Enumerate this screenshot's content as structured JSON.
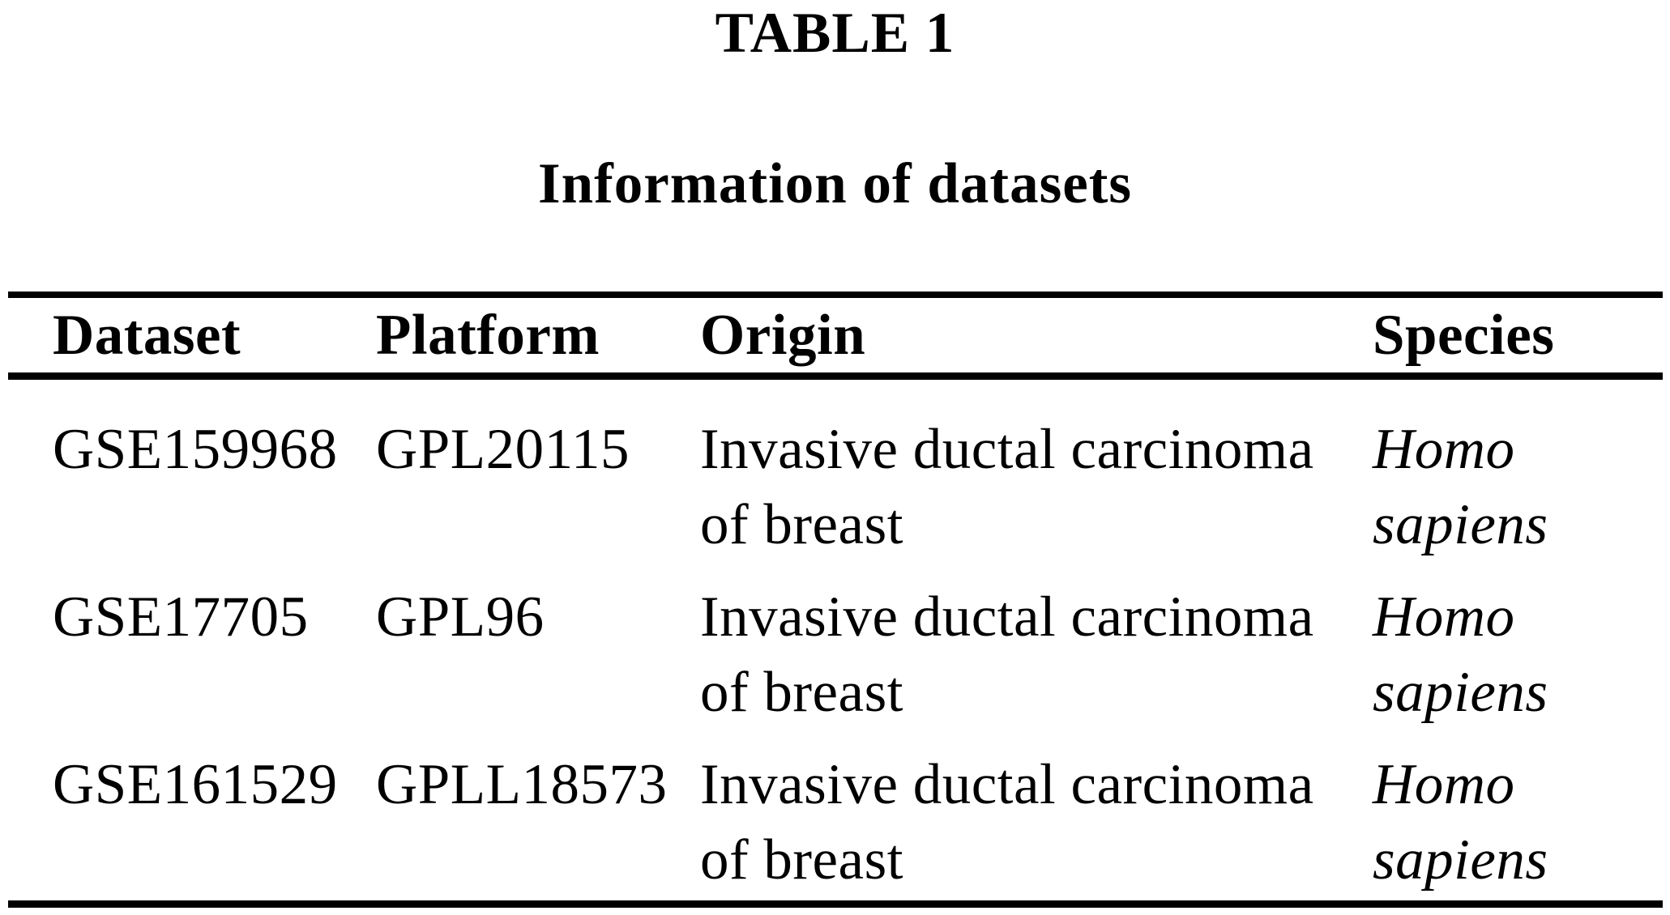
{
  "title": "TABLE 1",
  "subtitle": "Information of datasets",
  "table": {
    "headers": [
      "Dataset",
      "Platform",
      "Origin",
      "Species"
    ],
    "rows": [
      {
        "dataset": "GSE159968",
        "platform": "GPL20115",
        "origin_line1": "Invasive ductal carcinoma",
        "origin_line2": "of breast",
        "species_line1": "Homo",
        "species_line2": "sapiens"
      },
      {
        "dataset": "GSE17705",
        "platform": "GPL96",
        "origin_line1": "Invasive ductal carcinoma",
        "origin_line2": "of breast",
        "species_line1": "Homo",
        "species_line2": "sapiens"
      },
      {
        "dataset": "GSE161529",
        "platform": "GPLL18573",
        "origin_line1": "Invasive ductal carcinoma",
        "origin_line2": "of breast",
        "species_line1": "Homo",
        "species_line2": "sapiens"
      }
    ]
  },
  "colors": {
    "background": "#ffffff",
    "text": "#000000",
    "rule": "#000000"
  }
}
